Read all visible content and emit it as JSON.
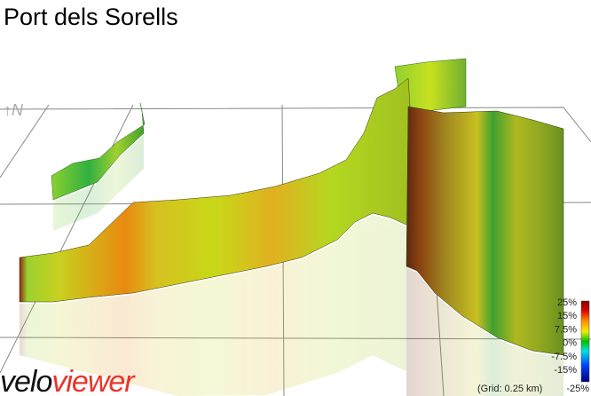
{
  "title": "Port dels Sorells",
  "compass": "N",
  "legend": {
    "labels": [
      "25%",
      "15%",
      "7.5%",
      "0%",
      "-7.5%",
      "-15%",
      "-25%"
    ]
  },
  "grid_note": "(Grid: 0.25 km)",
  "logo": {
    "first": "velo",
    "second": "viewer"
  }
}
